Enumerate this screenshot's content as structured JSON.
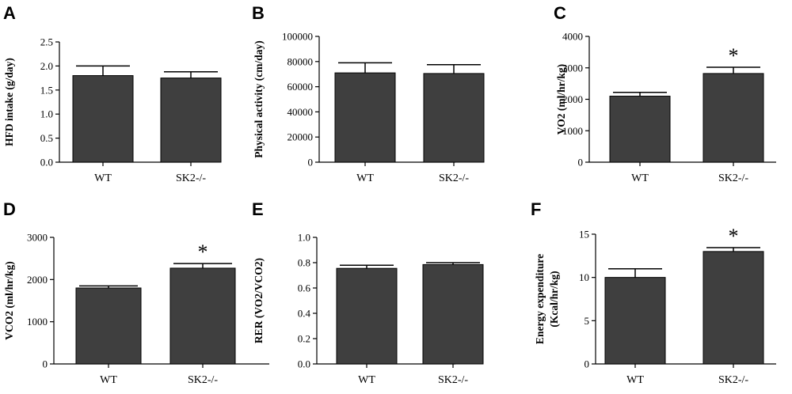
{
  "colors": {
    "bar": "#3f3f3f",
    "axis": "#000000"
  },
  "chart_data": [
    {
      "panel": "A",
      "type": "bar",
      "ylabel": "HFD intake (g/day)",
      "ylabel_lines": [
        "HFD intake (g/day)"
      ],
      "categories": [
        "WT",
        "SK2-/-"
      ],
      "values": [
        1.8,
        1.75
      ],
      "errors": [
        0.2,
        0.13
      ],
      "ylim": [
        0,
        2.5
      ],
      "yticks": [
        "0.0",
        "0.5",
        "1.0",
        "1.5",
        "2.0",
        "2.5"
      ],
      "significance": [
        "",
        ""
      ]
    },
    {
      "panel": "B",
      "type": "bar",
      "ylabel": "Physical activity (cm/day)",
      "ylabel_lines": [
        "Physical activity (cm/day)"
      ],
      "categories": [
        "WT",
        "SK2-/-"
      ],
      "values": [
        71000,
        70500
      ],
      "errors": [
        8000,
        7000
      ],
      "ylim": [
        0,
        100000
      ],
      "yticks": [
        "0",
        "20000",
        "40000",
        "60000",
        "80000",
        "100000"
      ],
      "significance": [
        "",
        ""
      ]
    },
    {
      "panel": "C",
      "type": "bar",
      "ylabel": "VO2 (ml/hr/kg)",
      "ylabel_lines": [
        "VO2 (ml/hr/kg)"
      ],
      "categories": [
        "WT",
        "SK2-/-"
      ],
      "values": [
        2100,
        2820
      ],
      "errors": [
        120,
        200
      ],
      "ylim": [
        0,
        4000
      ],
      "yticks": [
        "0",
        "1000",
        "2000",
        "3000",
        "4000"
      ],
      "significance": [
        "",
        "*"
      ]
    },
    {
      "panel": "D",
      "type": "bar",
      "ylabel": "VCO2 (ml/hr/kg)",
      "ylabel_lines": [
        "VCO2 (ml/hr/kg)"
      ],
      "categories": [
        "WT",
        "SK2-/-"
      ],
      "values": [
        1800,
        2270
      ],
      "errors": [
        50,
        110
      ],
      "ylim": [
        0,
        3000
      ],
      "yticks": [
        "0",
        "1000",
        "2000",
        "3000"
      ],
      "significance": [
        "",
        "*"
      ]
    },
    {
      "panel": "E",
      "type": "bar",
      "ylabel": "RER (VO2/VCO2)",
      "ylabel_lines": [
        "RER (VO2/VCO2)"
      ],
      "categories": [
        "WT",
        "SK2-/-"
      ],
      "values": [
        0.755,
        0.785
      ],
      "errors": [
        0.025,
        0.015
      ],
      "ylim": [
        0,
        1.0
      ],
      "yticks": [
        "0.0",
        "0.2",
        "0.4",
        "0.6",
        "0.8",
        "1.0"
      ],
      "significance": [
        "",
        ""
      ]
    },
    {
      "panel": "F",
      "type": "bar",
      "ylabel": "Energy expenditure (Kcal/hr/kg)",
      "ylabel_lines": [
        "Energy expenditure",
        "(Kcal/hr/kg)"
      ],
      "categories": [
        "WT",
        "SK2-/-"
      ],
      "values": [
        10.0,
        13.0
      ],
      "errors": [
        1.0,
        0.45
      ],
      "ylim": [
        0,
        15
      ],
      "yticks": [
        "0",
        "5",
        "10",
        "15"
      ],
      "significance": [
        "",
        "*"
      ]
    }
  ]
}
